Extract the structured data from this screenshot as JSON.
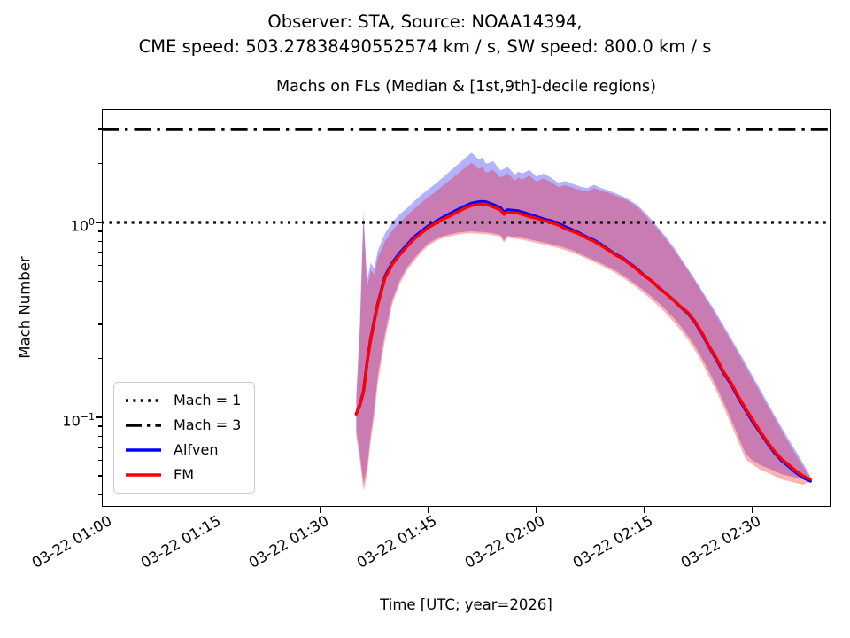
{
  "header": {
    "suptitle_line1": "Observer: STA, Source: NOAA14394,",
    "suptitle_line2": "CME speed: 503.27838490552574 km / s, SW speed: 800.0 km / s"
  },
  "axis": {
    "y_tick_labels": [
      {
        "base": "10",
        "exp": "0"
      },
      {
        "base": "10",
        "exp": "−1"
      }
    ]
  },
  "legend": {
    "items": [
      {
        "label": "Mach = 1",
        "style": "dotted",
        "color": "#000000"
      },
      {
        "label": "Mach = 3",
        "style": "dashdot",
        "color": "#000000"
      },
      {
        "label": "Alfven",
        "style": "solid",
        "color": "#0000ff"
      },
      {
        "label": "FM",
        "style": "solid",
        "color": "#ff0000"
      }
    ]
  },
  "colors": {
    "alfven_line": "#0000ff",
    "fm_line": "#ff0000",
    "alfven_band_on_white": "#b3b3ff",
    "fm_band_on_white": "#ffb3b3",
    "band_overlap": "#c97db3",
    "reference_lines": "#000000",
    "axes": "#000000",
    "background": "#ffffff"
  },
  "chart_data": {
    "type": "line",
    "title": "Machs on FLs (Median & [1st,9th]-decile regions)",
    "xlabel": "Time [UTC; year=2026]",
    "ylabel": "Mach Number",
    "x_axis": {
      "unit": "minutes after 2026-03-22 01:00 UTC",
      "tick_labels": [
        "03-22 01:00",
        "03-22 01:15",
        "03-22 01:30",
        "03-22 01:45",
        "03-22 02:00",
        "03-22 02:15",
        "03-22 02:30"
      ],
      "tick_minutes": [
        0,
        15,
        30,
        45,
        60,
        75,
        90
      ],
      "range_minutes": [
        -0.3,
        100.8
      ],
      "tick_label_rotation_deg": 30
    },
    "y_axis": {
      "scale": "log",
      "range": [
        0.0347,
        3.82
      ],
      "major_ticks": [
        1,
        0.1
      ],
      "minor_ticks": [
        0.04,
        0.05,
        0.06,
        0.07,
        0.08,
        0.09,
        0.2,
        0.3,
        0.4,
        0.5,
        0.6,
        0.7,
        0.8,
        0.9,
        2,
        3
      ]
    },
    "reference_lines": [
      {
        "id": "mach1",
        "label": "Mach = 1",
        "value": 1,
        "style": "dotted",
        "color": "#000000"
      },
      {
        "id": "mach3",
        "label": "Mach = 3",
        "value": 3,
        "style": "dashdot",
        "color": "#000000"
      }
    ],
    "band_alpha": 0.3,
    "x_minutes": [
      35,
      35.5,
      36,
      36.5,
      37,
      37.5,
      38,
      39,
      40,
      41,
      42,
      43,
      44,
      45,
      46,
      47,
      48,
      49,
      50,
      51,
      52,
      52.5,
      53,
      54,
      55,
      55.5,
      56,
      57,
      57.5,
      58,
      59,
      60,
      61,
      62,
      63,
      64,
      65,
      66,
      67,
      68,
      69,
      70,
      71,
      72,
      73,
      74,
      75,
      76,
      77,
      78,
      79,
      80,
      81,
      82,
      83,
      84,
      85,
      86,
      87,
      88,
      89,
      90,
      91,
      92,
      93,
      94,
      95,
      96,
      97,
      98
    ],
    "series": [
      {
        "id": "alfven_median",
        "name": "Alfven",
        "role": "median",
        "color": "#0000ff",
        "values": [
          0.104,
          0.116,
          0.136,
          0.192,
          0.253,
          0.314,
          0.385,
          0.53,
          0.62,
          0.695,
          0.765,
          0.84,
          0.9,
          0.96,
          1.01,
          1.06,
          1.11,
          1.16,
          1.21,
          1.255,
          1.275,
          1.28,
          1.275,
          1.235,
          1.19,
          1.13,
          1.16,
          1.15,
          1.145,
          1.13,
          1.1,
          1.07,
          1.04,
          1.02,
          0.99,
          0.95,
          0.915,
          0.88,
          0.84,
          0.81,
          0.77,
          0.725,
          0.685,
          0.655,
          0.615,
          0.575,
          0.533,
          0.5,
          0.462,
          0.43,
          0.4,
          0.368,
          0.342,
          0.307,
          0.267,
          0.228,
          0.197,
          0.168,
          0.148,
          0.126,
          0.109,
          0.095,
          0.084,
          0.074,
          0.066,
          0.06,
          0.056,
          0.052,
          0.049,
          0.047
        ]
      },
      {
        "id": "fm_median",
        "name": "FM",
        "role": "median",
        "color": "#ff0000",
        "values": [
          0.104,
          0.115,
          0.135,
          0.19,
          0.25,
          0.31,
          0.38,
          0.52,
          0.61,
          0.68,
          0.75,
          0.82,
          0.88,
          0.94,
          0.99,
          1.04,
          1.08,
          1.13,
          1.18,
          1.22,
          1.24,
          1.245,
          1.24,
          1.2,
          1.16,
          1.1,
          1.13,
          1.12,
          1.115,
          1.1,
          1.07,
          1.05,
          1.02,
          1.0,
          0.97,
          0.93,
          0.9,
          0.87,
          0.83,
          0.8,
          0.76,
          0.72,
          0.68,
          0.65,
          0.61,
          0.57,
          0.53,
          0.5,
          0.46,
          0.43,
          0.4,
          0.37,
          0.345,
          0.31,
          0.27,
          0.23,
          0.2,
          0.17,
          0.15,
          0.128,
          0.111,
          0.097,
          0.085,
          0.075,
          0.067,
          0.061,
          0.057,
          0.053,
          0.05,
          0.048
        ]
      },
      {
        "id": "alfven_upper",
        "name": "Alfven 9th decile",
        "role": "band_upper",
        "color": "#0000ff",
        "values": [
          0.13,
          0.3,
          1.15,
          0.5,
          0.62,
          0.58,
          0.72,
          0.88,
          1.0,
          1.1,
          1.18,
          1.28,
          1.38,
          1.48,
          1.58,
          1.7,
          1.83,
          1.97,
          2.12,
          2.28,
          2.1,
          2.16,
          2.0,
          2.06,
          1.85,
          1.88,
          1.93,
          1.76,
          1.82,
          1.78,
          1.86,
          1.72,
          1.78,
          1.7,
          1.6,
          1.63,
          1.58,
          1.53,
          1.5,
          1.56,
          1.5,
          1.46,
          1.41,
          1.36,
          1.3,
          1.23,
          1.13,
          1.03,
          0.93,
          0.84,
          0.75,
          0.66,
          0.58,
          0.51,
          0.445,
          0.39,
          0.34,
          0.295,
          0.255,
          0.22,
          0.19,
          0.163,
          0.14,
          0.12,
          0.103,
          0.089,
          0.077,
          0.067,
          0.058,
          0.05
        ]
      },
      {
        "id": "alfven_lower",
        "name": "Alfven 1st decile",
        "role": "band_lower",
        "color": "#0000ff",
        "values": [
          0.085,
          0.065,
          0.046,
          0.055,
          0.082,
          0.11,
          0.165,
          0.27,
          0.4,
          0.5,
          0.585,
          0.65,
          0.72,
          0.78,
          0.82,
          0.85,
          0.87,
          0.885,
          0.895,
          0.9,
          0.895,
          0.893,
          0.89,
          0.88,
          0.865,
          0.81,
          0.855,
          0.845,
          0.84,
          0.835,
          0.82,
          0.805,
          0.79,
          0.775,
          0.76,
          0.74,
          0.72,
          0.69,
          0.665,
          0.64,
          0.615,
          0.59,
          0.565,
          0.535,
          0.505,
          0.475,
          0.445,
          0.415,
          0.385,
          0.355,
          0.325,
          0.293,
          0.262,
          0.232,
          0.2,
          0.17,
          0.143,
          0.119,
          0.098,
          0.08,
          0.065,
          0.06,
          0.057,
          0.055,
          0.053,
          0.051,
          0.05,
          0.049,
          0.048,
          0.049
        ]
      },
      {
        "id": "fm_upper",
        "name": "FM 9th decile",
        "role": "band_upper",
        "color": "#ff0000",
        "values": [
          0.12,
          0.27,
          1.05,
          0.46,
          0.57,
          0.54,
          0.66,
          0.8,
          0.91,
          1.0,
          1.08,
          1.17,
          1.26,
          1.35,
          1.44,
          1.54,
          1.65,
          1.77,
          1.9,
          2.02,
          1.88,
          1.93,
          1.8,
          1.86,
          1.7,
          1.73,
          1.78,
          1.64,
          1.7,
          1.66,
          1.74,
          1.62,
          1.68,
          1.61,
          1.52,
          1.55,
          1.51,
          1.47,
          1.44,
          1.5,
          1.45,
          1.42,
          1.37,
          1.33,
          1.27,
          1.2,
          1.1,
          1.0,
          0.91,
          0.82,
          0.73,
          0.645,
          0.57,
          0.5,
          0.435,
          0.38,
          0.33,
          0.285,
          0.247,
          0.213,
          0.183,
          0.157,
          0.135,
          0.116,
          0.1,
          0.086,
          0.074,
          0.064,
          0.056,
          0.049
        ]
      },
      {
        "id": "fm_lower",
        "name": "FM 1st decile",
        "role": "band_lower",
        "color": "#ff0000",
        "values": [
          0.08,
          0.06,
          0.042,
          0.05,
          0.075,
          0.1,
          0.15,
          0.25,
          0.38,
          0.48,
          0.565,
          0.63,
          0.7,
          0.76,
          0.8,
          0.83,
          0.85,
          0.865,
          0.875,
          0.88,
          0.875,
          0.873,
          0.87,
          0.86,
          0.845,
          0.79,
          0.835,
          0.825,
          0.82,
          0.815,
          0.8,
          0.785,
          0.77,
          0.755,
          0.74,
          0.72,
          0.7,
          0.675,
          0.65,
          0.625,
          0.6,
          0.575,
          0.55,
          0.52,
          0.49,
          0.46,
          0.43,
          0.4,
          0.37,
          0.34,
          0.31,
          0.28,
          0.25,
          0.22,
          0.19,
          0.16,
          0.135,
          0.112,
          0.092,
          0.075,
          0.061,
          0.057,
          0.054,
          0.052,
          0.05,
          0.048,
          0.047,
          0.046,
          0.045,
          0.047
        ]
      }
    ],
    "legend_position": "lower left",
    "grid": false
  }
}
